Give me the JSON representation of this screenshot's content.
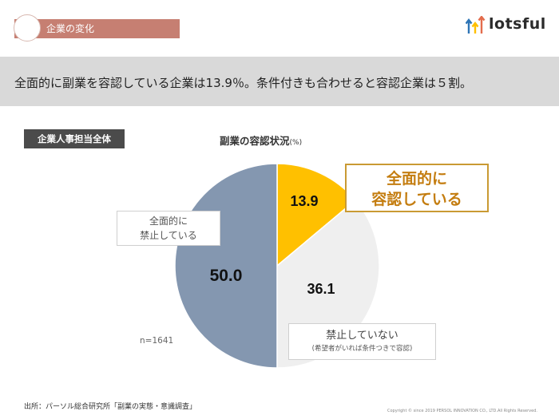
{
  "section": {
    "label": "企業の変化"
  },
  "logo": {
    "text": "lotsful"
  },
  "headline": "全面的に副業を容認している企業は13.9％。条件付きも合わせると容認企業は５割。",
  "audience_badge": "企業人事担当全体",
  "chart_title": "副業の容認状況",
  "chart_unit": "(%)",
  "sample_size": "n=1641",
  "source": "出所：パーソル総合研究所「副業の実態・意識調査」",
  "copyright": "Copyright © since 2019 PERSOL INNOVATION CO., LTD.All Rights Reserved.",
  "colors": {
    "accent_tag": "#c67f72",
    "full_allow": "#ffc000",
    "conditional": "#efefef",
    "banned": "#8497b0",
    "callout_border": "#c99a33",
    "callout_text": "#c47d10"
  },
  "callouts": {
    "full_line1": "全面的に",
    "full_line2": "容認している",
    "banned_line1": "全面的に",
    "banned_line2": "禁止している",
    "notbanned_main": "禁止していない",
    "notbanned_sub": "(希望者がいれば条件つきで容認)"
  },
  "chart_data": {
    "type": "pie",
    "title": "副業の容認状況",
    "unit": "(%)",
    "slices": [
      {
        "label": "全面的に容認している",
        "value": 13.9,
        "display": "13.9",
        "color": "#ffc000"
      },
      {
        "label": "禁止していない（希望者がいれば条件つきで容認）",
        "value": 36.1,
        "display": "36.1",
        "color": "#efefef"
      },
      {
        "label": "全面的に禁止している",
        "value": 50.0,
        "display": "50.0",
        "color": "#8497b0"
      }
    ],
    "start_angle_deg": 0,
    "direction": "clockwise"
  }
}
